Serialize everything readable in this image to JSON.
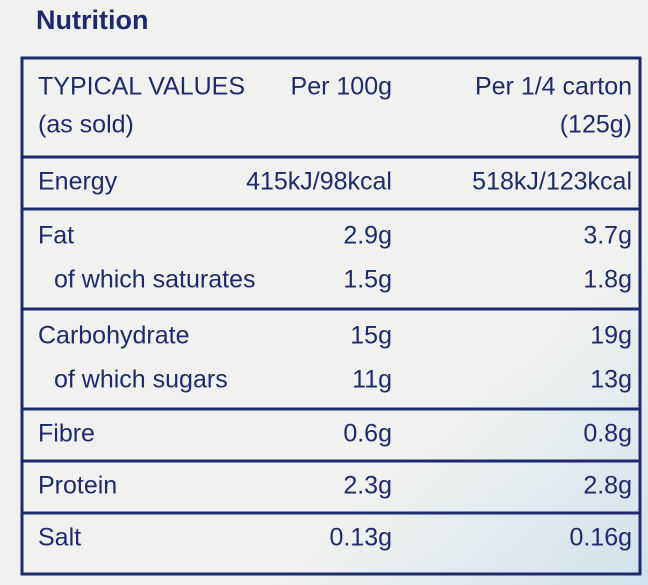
{
  "title": "Nutrition",
  "table": {
    "header": [
      [
        "TYPICAL VALUES",
        "(as sold)"
      ],
      [
        "Per 100g"
      ],
      [
        "Per 1/4 carton",
        "(125g)"
      ]
    ],
    "groups": [
      [
        [
          "Energy",
          "415kJ/98kcal",
          "518kJ/123kcal"
        ]
      ],
      [
        [
          "Fat",
          "2.9g",
          "3.7g"
        ],
        [
          "of which saturates",
          "1.5g",
          "1.8g"
        ]
      ],
      [
        [
          "Carbohydrate",
          "15g",
          "19g"
        ],
        [
          "of which sugars",
          "11g",
          "13g"
        ]
      ],
      [
        [
          "Fibre",
          "0.6g",
          "0.8g"
        ]
      ],
      [
        [
          "Protein",
          "2.3g",
          "2.8g"
        ]
      ],
      [
        [
          "Salt",
          "0.13g",
          "0.16g"
        ]
      ]
    ]
  }
}
